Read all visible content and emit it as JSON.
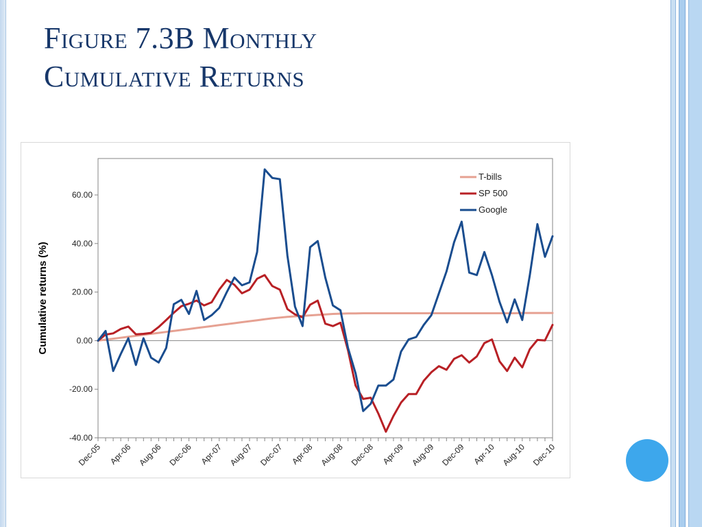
{
  "slide": {
    "title_line1": "Figure 7.3B Monthly",
    "title_line2": "Cumulative Returns",
    "title_color": "#17376a",
    "accent_circle_color": "#3da7ec"
  },
  "chart_data": {
    "type": "line",
    "title": "",
    "xlabel": "",
    "ylabel": "Cumulative returns (%)",
    "ylim": [
      -40,
      75
    ],
    "yticks": [
      -40,
      -20,
      0,
      20,
      40,
      60
    ],
    "ytick_labels": [
      "-40.00",
      "-20.00",
      "0.00",
      "20.00",
      "40.00",
      "60.00"
    ],
    "xtick_labels": [
      "Dec-05",
      "Apr-06",
      "Aug-06",
      "Dec-06",
      "Apr-07",
      "Aug-07",
      "Dec-07",
      "Apr-08",
      "Aug-08",
      "Dec-08",
      "Apr-09",
      "Aug-09",
      "Dec-09",
      "Apr-10",
      "Aug-10",
      "Dec-10"
    ],
    "x_start": "Dec-05",
    "x_end": "Dec-10",
    "grid": false,
    "legend_position": "top-right",
    "series": [
      {
        "name": "T-bills",
        "color": "#e6a192",
        "values": [
          0.0,
          0.4,
          0.8,
          1.2,
          1.6,
          2.0,
          2.4,
          2.8,
          3.2,
          3.6,
          4.0,
          4.4,
          4.8,
          5.2,
          5.6,
          6.0,
          6.4,
          6.8,
          7.2,
          7.6,
          8.0,
          8.4,
          8.8,
          9.2,
          9.5,
          9.8,
          10.0,
          10.2,
          10.4,
          10.6,
          10.8,
          11.0,
          11.1,
          11.2,
          11.2,
          11.3,
          11.3,
          11.3,
          11.3,
          11.3,
          11.3,
          11.3,
          11.3,
          11.3,
          11.3,
          11.3,
          11.3,
          11.3,
          11.3,
          11.3,
          11.3,
          11.3,
          11.3,
          11.3,
          11.3,
          11.3,
          11.4,
          11.4,
          11.4,
          11.4,
          11.4
        ]
      },
      {
        "name": "SP 500",
        "color": "#b82025",
        "values": [
          0.0,
          2.5,
          3.0,
          4.8,
          5.8,
          2.6,
          2.8,
          3.2,
          5.6,
          8.5,
          11.5,
          14.2,
          15.2,
          16.5,
          14.5,
          15.8,
          21.0,
          25.0,
          23.0,
          19.5,
          21.0,
          25.5,
          27.0,
          22.5,
          21.0,
          13.0,
          10.8,
          9.6,
          14.8,
          16.5,
          7.0,
          6.0,
          7.4,
          -4.0,
          -18.5,
          -24.0,
          -23.5,
          -30.0,
          -37.5,
          -31.0,
          -25.5,
          -22.0,
          -22.0,
          -16.5,
          -13.0,
          -10.5,
          -12.0,
          -7.5,
          -6.0,
          -9.0,
          -6.5,
          -1.0,
          0.5,
          -8.5,
          -12.5,
          -7.0,
          -11.0,
          -3.5,
          0.3,
          0.1,
          6.5
        ]
      },
      {
        "name": "Google",
        "color": "#1a4d8f",
        "values": [
          0.0,
          4.0,
          -12.5,
          -5.5,
          1.0,
          -10.0,
          1.0,
          -7.0,
          -9.0,
          -3.0,
          15.0,
          16.8,
          11.0,
          20.5,
          8.5,
          10.5,
          13.5,
          20.0,
          26.0,
          22.8,
          24.0,
          36.5,
          70.5,
          67.0,
          66.5,
          35.0,
          14.0,
          6.0,
          38.5,
          41.0,
          26.0,
          14.5,
          12.5,
          -3.0,
          -13.5,
          -29.0,
          -26.0,
          -18.5,
          -18.5,
          -16.0,
          -4.5,
          0.5,
          1.5,
          6.5,
          10.5,
          19.5,
          28.5,
          40.5,
          49.0,
          28.0,
          27.0,
          36.5,
          27.0,
          16.0,
          7.5,
          17.0,
          8.5,
          27.0,
          48.0,
          34.5,
          43.0
        ]
      }
    ]
  }
}
